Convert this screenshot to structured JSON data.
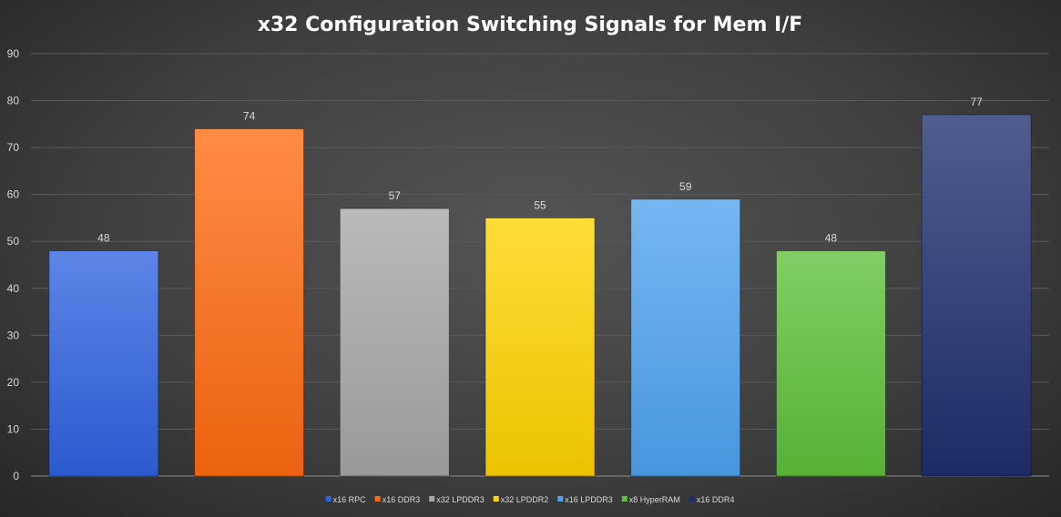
{
  "chart_data": {
    "type": "bar",
    "title": "x32 Configuration Switching Signals for Mem I/F",
    "xlabel": "",
    "ylabel": "",
    "ylim": [
      0,
      90
    ],
    "yticks": [
      0,
      10,
      20,
      30,
      40,
      50,
      60,
      70,
      80,
      90
    ],
    "grid": true,
    "legend_position": "bottom",
    "series": [
      {
        "name": "x16 RPC",
        "value": 48,
        "color": "#2f62e0"
      },
      {
        "name": "x16 DDR3",
        "value": 74,
        "color": "#ff6a10"
      },
      {
        "name": "x32 LPDDR3",
        "value": 57,
        "color": "#a6a6a6"
      },
      {
        "name": "x32 LPDDR2",
        "value": 55,
        "color": "#ffd400"
      },
      {
        "name": "x16 LPDDR3",
        "value": 59,
        "color": "#4ea3f0"
      },
      {
        "name": "x8 HyperRAM",
        "value": 48,
        "color": "#5ec03a"
      },
      {
        "name": "x16 DDR4",
        "value": 77,
        "color": "#1e2f6e"
      }
    ]
  }
}
